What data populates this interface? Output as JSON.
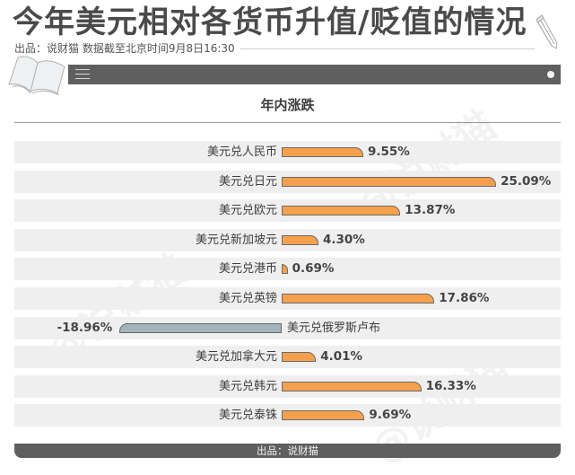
{
  "header": {
    "title": "今年美元相对各货币升值/贬值的情况",
    "subtitle": "出品：说财猫   数据截至北京时间9月8日16:30"
  },
  "icons": {
    "pencil": "pencil-icon",
    "book": "book-icon",
    "menu": "hamburger-menu-icon",
    "dot": "dot-icon"
  },
  "colors": {
    "positive_bar": "#f6a04d",
    "negative_bar": "#a3b4bc",
    "row_background": "#efefef",
    "header_bar": "#5f5f5f"
  },
  "watermark": "@说财猫",
  "footer": {
    "text": "出品：说财猫"
  },
  "chart_data": {
    "type": "bar",
    "orientation": "horizontal",
    "title": "年内涨跌",
    "xlabel": "",
    "ylabel": "",
    "grid": false,
    "legend": null,
    "unit": "%",
    "categories": [
      "美元兑人民币",
      "美元兑日元",
      "美元兑欧元",
      "美元兑新加坡元",
      "美元兑港币",
      "美元兑英镑",
      "美元兑俄罗斯卢布",
      "美元兑加拿大元",
      "美元兑韩元",
      "美元兑泰铢"
    ],
    "values": [
      9.55,
      25.09,
      13.87,
      4.3,
      0.69,
      17.86,
      -18.96,
      4.01,
      16.33,
      9.69
    ],
    "value_labels": [
      "9.55%",
      "25.09%",
      "13.87%",
      "4.30%",
      "0.69%",
      "17.86%",
      "-18.96%",
      "4.01%",
      "16.33%",
      "9.69%"
    ]
  }
}
